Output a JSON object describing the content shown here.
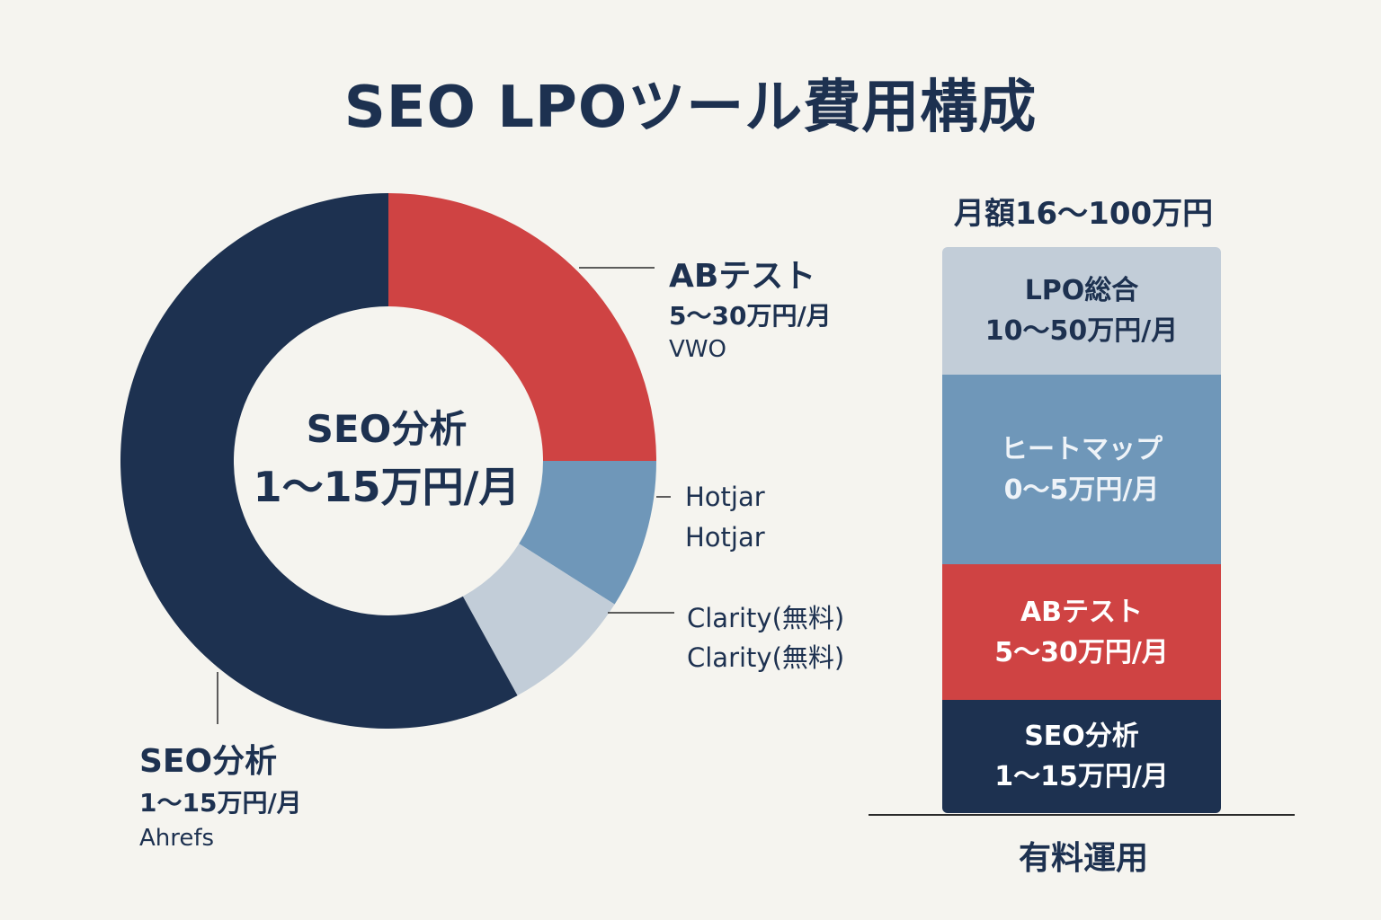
{
  "title": "SEO LPOツール費用構成",
  "colors": {
    "navy": "#1d3150",
    "red": "#cf4343",
    "steel_blue": "#6f97b9",
    "light_gray_blue": "#c2cdd8",
    "background": "#f5f4ef"
  },
  "chart_data": [
    {
      "type": "donut",
      "center_label": {
        "name": "SEO分析",
        "price": "1〜15万円/月"
      },
      "segments": [
        {
          "name": "ABテスト",
          "price": "5〜30万円/月",
          "tool": "VWO",
          "share_pct": 25,
          "color": "#cf4343"
        },
        {
          "name": "Hotjar",
          "tool": "Hotjar",
          "share_pct": 9,
          "color": "#6f97b9"
        },
        {
          "name": "Clarity(無料)",
          "tool": "Clarity(無料)",
          "share_pct": 8,
          "color": "#c2cdd8"
        },
        {
          "name": "SEO分析",
          "price": "1〜15万円/月",
          "tool": "Ahrefs",
          "share_pct": 58,
          "color": "#1d3150"
        }
      ]
    },
    {
      "type": "stacked_bar",
      "top_label": "月額16〜100万円",
      "bottom_label": "有料運用",
      "segments": [
        {
          "name": "LPO総合",
          "price": "10〜50万円/月",
          "height_pct": 22.5,
          "color": "#c2cdd8",
          "text_color": "#1d3150"
        },
        {
          "name": "ヒートマップ",
          "price": "0〜5万円/月",
          "height_pct": 33.5,
          "color": "#6f97b9",
          "text_color": "#eef3f8"
        },
        {
          "name": "ABテスト",
          "price": "5〜30万円/月",
          "height_pct": 24,
          "color": "#cf4343",
          "text_color": "#ffffff"
        },
        {
          "name": "SEO分析",
          "price": "1〜15万円/月",
          "height_pct": 20,
          "color": "#1d3150",
          "text_color": "#ffffff"
        }
      ]
    }
  ]
}
